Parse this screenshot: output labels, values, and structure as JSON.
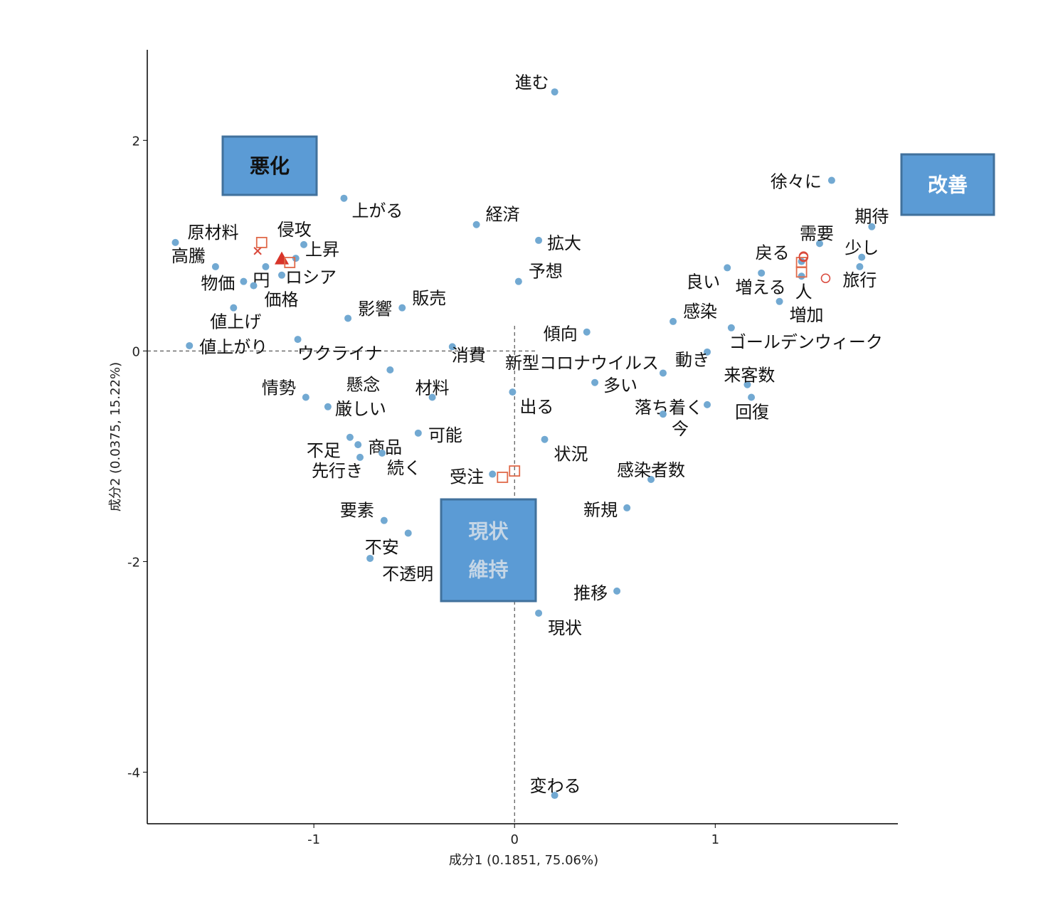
{
  "chart_data": {
    "type": "scatter",
    "xlabel": "成分1 (0.1851, 75.06%)",
    "ylabel": "成分2 (0.0375, 15.22%)",
    "xlim": [
      -1.83,
      1.91
    ],
    "ylim": [
      -4.49,
      2.86
    ],
    "xticks": [
      -1,
      0,
      1
    ],
    "yticks": [
      2,
      0,
      -2,
      -4
    ],
    "xtick_labels": [
      "-1",
      "0",
      "1"
    ],
    "ytick_labels": [
      "2",
      "0",
      "-2",
      "-4"
    ],
    "reference_lines": {
      "x": 0,
      "y": 0,
      "style": "dashed"
    },
    "colors": {
      "words": "#72a9d2",
      "groups": "#d9483b",
      "box_fill": "#5b9bd5",
      "box_border": "#41719c"
    },
    "words": [
      {
        "label": "進む",
        "x": 0.2,
        "y": 2.46
      },
      {
        "label": "徐々に",
        "x": 1.58,
        "y": 1.62
      },
      {
        "label": "期待",
        "x": 1.78,
        "y": 1.18
      },
      {
        "label": "需要",
        "x": 1.52,
        "y": 1.02
      },
      {
        "label": "少し",
        "x": 1.73,
        "y": 0.89
      },
      {
        "label": "旅行",
        "x": 1.72,
        "y": 0.8
      },
      {
        "label": "戻る",
        "x": 1.43,
        "y": 0.85
      },
      {
        "label": "人",
        "x": 1.43,
        "y": 0.71
      },
      {
        "label": "増える",
        "x": 1.23,
        "y": 0.74
      },
      {
        "label": "良い",
        "x": 1.06,
        "y": 0.79
      },
      {
        "label": "増加",
        "x": 1.32,
        "y": 0.47
      },
      {
        "label": "感染",
        "x": 0.79,
        "y": 0.28
      },
      {
        "label": "ゴールデンウィーク",
        "x": 1.08,
        "y": 0.22
      },
      {
        "label": "傾向",
        "x": 0.36,
        "y": 0.18
      },
      {
        "label": "動き",
        "x": 0.96,
        "y": -0.01
      },
      {
        "label": "新型コロナウイルス",
        "x": 0.74,
        "y": -0.21
      },
      {
        "label": "来客数",
        "x": 1.16,
        "y": -0.32
      },
      {
        "label": "多い",
        "x": 0.4,
        "y": -0.3
      },
      {
        "label": "回復",
        "x": 1.18,
        "y": -0.44
      },
      {
        "label": "落ち着く",
        "x": 0.96,
        "y": -0.51
      },
      {
        "label": "今",
        "x": 0.74,
        "y": -0.6
      },
      {
        "label": "出る",
        "x": -0.01,
        "y": -0.39
      },
      {
        "label": "状況",
        "x": 0.15,
        "y": -0.84
      },
      {
        "label": "感染者数",
        "x": 0.68,
        "y": -1.22
      },
      {
        "label": "新規",
        "x": 0.56,
        "y": -1.49
      },
      {
        "label": "受注",
        "x": -0.11,
        "y": -1.17
      },
      {
        "label": "推移",
        "x": 0.51,
        "y": -2.28
      },
      {
        "label": "現状",
        "x": 0.12,
        "y": -2.49
      },
      {
        "label": "変わる",
        "x": 0.2,
        "y": -4.22
      },
      {
        "label": "拡大",
        "x": 0.12,
        "y": 1.05
      },
      {
        "label": "予想",
        "x": 0.02,
        "y": 0.66
      },
      {
        "label": "経済",
        "x": -0.19,
        "y": 1.2
      },
      {
        "label": "上がる",
        "x": -0.85,
        "y": 1.45
      },
      {
        "label": "販売",
        "x": -0.56,
        "y": 0.41
      },
      {
        "label": "影響",
        "x": -0.83,
        "y": 0.31
      },
      {
        "label": "消費",
        "x": -0.31,
        "y": 0.04
      },
      {
        "label": "ウクライナ",
        "x": -1.08,
        "y": 0.11
      },
      {
        "label": "懸念",
        "x": -0.62,
        "y": -0.18
      },
      {
        "label": "材料",
        "x": -0.41,
        "y": -0.44
      },
      {
        "label": "情勢",
        "x": -1.04,
        "y": -0.44
      },
      {
        "label": "厳しい",
        "x": -0.93,
        "y": -0.53
      },
      {
        "label": "可能",
        "x": -0.48,
        "y": -0.78
      },
      {
        "label": "不足",
        "x": -0.82,
        "y": -0.82
      },
      {
        "label": "商品",
        "x": -0.78,
        "y": -0.89
      },
      {
        "label": "先行き",
        "x": -0.77,
        "y": -1.01
      },
      {
        "label": "続く",
        "x": -0.66,
        "y": -0.97
      },
      {
        "label": "要素",
        "x": -0.65,
        "y": -1.61
      },
      {
        "label": "不安",
        "x": -0.53,
        "y": -1.73
      },
      {
        "label": "不透明",
        "x": -0.72,
        "y": -1.97
      },
      {
        "label": "原材料",
        "x": -1.69,
        "y": 1.03
      },
      {
        "label": "高騰",
        "x": -1.49,
        "y": 0.8
      },
      {
        "label": "物価",
        "x": -1.35,
        "y": 0.66
      },
      {
        "label": "円",
        "x": -1.24,
        "y": 0.8
      },
      {
        "label": "価格",
        "x": -1.3,
        "y": 0.62
      },
      {
        "label": "ロシア",
        "x": -1.16,
        "y": 0.72
      },
      {
        "label": "上昇",
        "x": -1.05,
        "y": 1.01
      },
      {
        "label": "侵攻",
        "x": -1.09,
        "y": 0.88
      },
      {
        "label": "値上げ",
        "x": -1.4,
        "y": 0.41
      },
      {
        "label": "値上がり",
        "x": -1.62,
        "y": 0.05
      }
    ],
    "group_markers": [
      {
        "shape": "cross",
        "x": -1.28,
        "y": 0.95
      },
      {
        "shape": "triangle",
        "x": -1.16,
        "y": 0.87
      },
      {
        "shape": "square",
        "x": -1.26,
        "y": 1.03
      },
      {
        "shape": "square",
        "x": -1.12,
        "y": 0.84
      },
      {
        "shape": "square",
        "x": 0.0,
        "y": -1.14
      },
      {
        "shape": "square",
        "x": -0.06,
        "y": -1.2
      },
      {
        "shape": "square",
        "x": 1.43,
        "y": 0.84
      },
      {
        "shape": "square",
        "x": 1.43,
        "y": 0.75
      },
      {
        "shape": "circle",
        "x": 1.44,
        "y": 0.9
      },
      {
        "shape": "circle",
        "x": 1.44,
        "y": 0.89
      },
      {
        "shape": "circle",
        "x": 1.55,
        "y": 0.69
      }
    ],
    "annotations": [
      {
        "text": "悪化",
        "text_color": "#111111"
      },
      {
        "text": "改善",
        "text_color": "#ffffff"
      },
      {
        "text": "現状\n維持",
        "text_color": "#c5d6e6"
      }
    ]
  }
}
